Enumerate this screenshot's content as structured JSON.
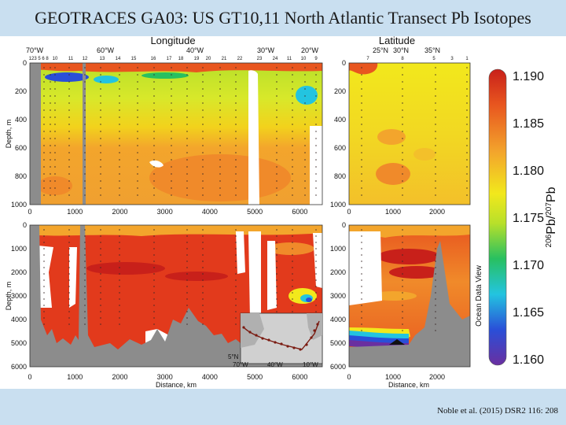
{
  "title": "GEOTRACES GA03: US GT10,11 North Atlantic Transect Pb Isotopes",
  "citation": "Noble et al. (2015) DSR2 116: 208",
  "chart_data": {
    "type": "heatmap",
    "variable_label": "206Pb/207Pb",
    "colorbar": {
      "ticks": [
        1.19,
        1.185,
        1.18,
        1.175,
        1.17,
        1.165,
        1.16
      ],
      "range": [
        1.16,
        1.19
      ],
      "watermark": "Ocean Data View",
      "colors": [
        "#6a2fa0",
        "#2a4fd8",
        "#23c4e0",
        "#28c060",
        "#b8e02a",
        "#f2e81c",
        "#f3a52c",
        "#e8561f",
        "#c8201a"
      ]
    },
    "top_axis_left": {
      "label": "Longitude",
      "ticks": [
        "70°W",
        "60°W",
        "40°W",
        "30°W",
        "20°W"
      ],
      "stations": [
        "12",
        "3",
        "5",
        "6",
        "8",
        "10",
        "11",
        "12",
        "13",
        "14",
        "15",
        "16",
        "17",
        "18",
        "19",
        "20",
        "21",
        "22",
        "23",
        "24",
        "11",
        "10",
        "9"
      ]
    },
    "top_axis_right": {
      "label": "Latitude",
      "ticks": [
        "25°N",
        "30°N",
        "35°N"
      ],
      "stations": [
        "7",
        "8",
        "5",
        "3",
        "1"
      ]
    },
    "x_axis": {
      "label": "Distance, km",
      "left_ticks": [
        0,
        1000,
        2000,
        3000,
        4000,
        5000,
        6000
      ],
      "right_ticks": [
        0,
        1000,
        2000
      ],
      "left_range": [
        0,
        6500
      ],
      "right_range": [
        0,
        2750
      ]
    },
    "y_axis": {
      "label": "Depth, m",
      "upper_ticks": [
        0,
        200,
        400,
        600,
        800,
        1000
      ],
      "lower_ticks": [
        0,
        1000,
        2000,
        3000,
        4000,
        5000,
        6000
      ]
    },
    "inset": {
      "corner_labels": [
        "5°N",
        "70°W",
        "40°W",
        "10°W"
      ]
    },
    "observations": [
      {
        "section": "western",
        "depth_range": "0-1000",
        "pattern": "surface 1.19 (red) in top 50 m, minimum ~1.165 (blue) at 100-150 m near 1000 km, ~1.175-1.18 below"
      },
      {
        "section": "western",
        "depth_range": "0-6000",
        "pattern": "mostly 1.18-1.19 (red) throughout deep water"
      },
      {
        "section": "eastern",
        "depth_range": "0-6000",
        "pattern": "1.18-1.19 upper, ~1.175 mid, minimum ~1.16 (purple) near bottom at ~500 km"
      }
    ]
  }
}
